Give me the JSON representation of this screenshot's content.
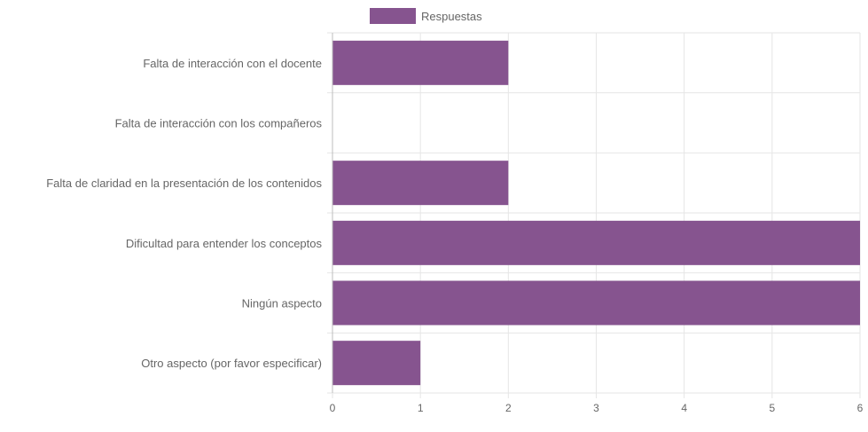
{
  "chart_data": {
    "type": "bar",
    "orientation": "horizontal",
    "categories": [
      "Falta de interacción con el docente",
      "Falta de interacción con los compañeros",
      "Falta de claridad en la presentación de los contenidos",
      "Dificultad para entender los conceptos",
      "Ningún aspecto",
      "Otro aspecto (por favor especificar)"
    ],
    "series": [
      {
        "name": "Respuestas",
        "values": [
          2,
          0,
          2,
          6,
          6,
          1
        ],
        "color": "#86548f"
      }
    ],
    "xlim": [
      0,
      6
    ],
    "x_ticks": [
      "0",
      "1",
      "2",
      "3",
      "4",
      "5",
      "6"
    ],
    "title": "",
    "xlabel": "",
    "ylabel": "",
    "grid": true,
    "legend": {
      "position": "top-center",
      "label": "Respuestas"
    }
  }
}
